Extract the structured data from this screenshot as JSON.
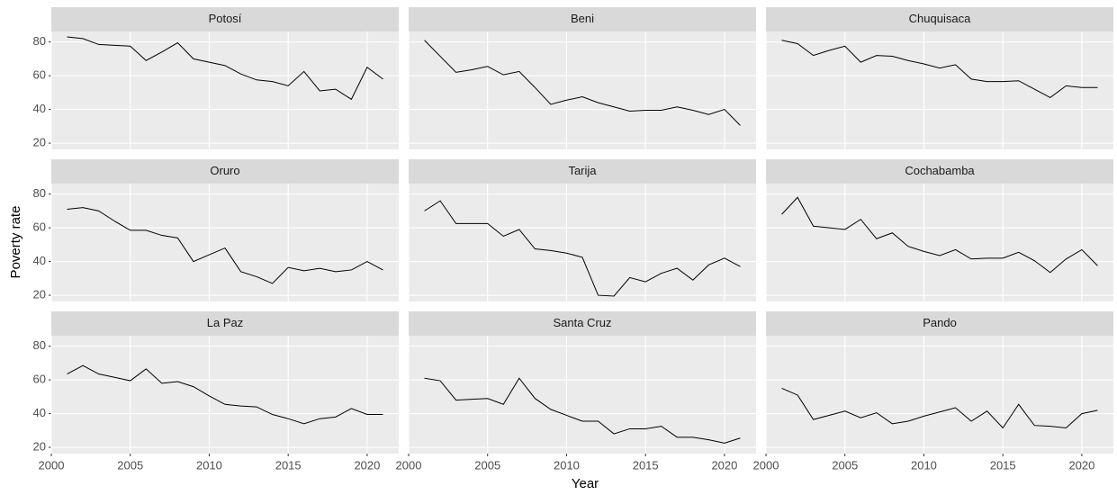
{
  "axis_labels": {
    "x": "Year",
    "y": "Poverty rate"
  },
  "chart_data": [
    {
      "type": "line",
      "title": "Potosí",
      "color": "#000000",
      "grid": true,
      "xlim": [
        2000,
        2022
      ],
      "ylim": [
        16.3,
        86.2
      ],
      "xticks": [
        2000,
        2005,
        2010,
        2015,
        2020
      ],
      "yticks": [
        20,
        40,
        60,
        80
      ],
      "x": [
        2001,
        2002,
        2003,
        2004,
        2005,
        2006,
        2007,
        2008,
        2009,
        2010,
        2011,
        2012,
        2013,
        2014,
        2015,
        2016,
        2017,
        2018,
        2019,
        2020,
        2021
      ],
      "values": [
        83,
        82,
        78.5,
        78,
        77.5,
        69,
        74,
        79.5,
        70,
        68,
        66,
        61,
        57.5,
        56.5,
        54,
        62.5,
        51,
        52,
        46,
        65,
        58
      ]
    },
    {
      "type": "line",
      "title": "Beni",
      "color": "#000000",
      "grid": true,
      "xlim": [
        2000,
        2022
      ],
      "ylim": [
        16.3,
        86.2
      ],
      "xticks": [
        2000,
        2005,
        2010,
        2015,
        2020
      ],
      "yticks": [
        20,
        40,
        60,
        80
      ],
      "x": [
        2001,
        2002,
        2003,
        2004,
        2005,
        2006,
        2007,
        2008,
        2009,
        2010,
        2011,
        2012,
        2013,
        2014,
        2015,
        2016,
        2017,
        2018,
        2019,
        2020,
        2021
      ],
      "values": [
        81,
        71.5,
        62,
        63.5,
        65.5,
        60.5,
        62.5,
        53,
        43,
        45.5,
        47.5,
        44,
        41.5,
        39,
        39.5,
        39.5,
        41.5,
        39.5,
        37,
        40,
        30.5
      ]
    },
    {
      "type": "line",
      "title": "Chuquisaca",
      "color": "#000000",
      "grid": true,
      "xlim": [
        2000,
        2022
      ],
      "ylim": [
        16.3,
        86.2
      ],
      "xticks": [
        2000,
        2005,
        2010,
        2015,
        2020
      ],
      "yticks": [
        20,
        40,
        60,
        80
      ],
      "x": [
        2001,
        2002,
        2003,
        2004,
        2005,
        2006,
        2007,
        2008,
        2009,
        2010,
        2011,
        2012,
        2013,
        2014,
        2015,
        2016,
        2017,
        2018,
        2019,
        2020,
        2021
      ],
      "values": [
        81,
        79,
        72,
        75,
        77.5,
        68,
        72,
        71.5,
        69,
        67,
        64.5,
        66.5,
        58,
        56.5,
        56.5,
        57,
        52,
        47,
        54,
        53,
        53
      ]
    },
    {
      "type": "line",
      "title": "Oruro",
      "color": "#000000",
      "grid": true,
      "xlim": [
        2000,
        2022
      ],
      "ylim": [
        16.3,
        86.2
      ],
      "xticks": [
        2000,
        2005,
        2010,
        2015,
        2020
      ],
      "yticks": [
        20,
        40,
        60,
        80
      ],
      "x": [
        2001,
        2002,
        2003,
        2004,
        2005,
        2006,
        2007,
        2008,
        2009,
        2010,
        2011,
        2012,
        2013,
        2014,
        2015,
        2016,
        2017,
        2018,
        2019,
        2020,
        2021
      ],
      "values": [
        71,
        72,
        70,
        64,
        58.5,
        58.5,
        55.5,
        54,
        40,
        44,
        48,
        34,
        31,
        27,
        36.5,
        34.5,
        36,
        34,
        35,
        40,
        35
      ]
    },
    {
      "type": "line",
      "title": "Tarija",
      "color": "#000000",
      "grid": true,
      "xlim": [
        2000,
        2022
      ],
      "ylim": [
        16.3,
        86.2
      ],
      "xticks": [
        2000,
        2005,
        2010,
        2015,
        2020
      ],
      "yticks": [
        20,
        40,
        60,
        80
      ],
      "x": [
        2001,
        2002,
        2003,
        2004,
        2005,
        2006,
        2007,
        2008,
        2009,
        2010,
        2011,
        2012,
        2013,
        2014,
        2015,
        2016,
        2017,
        2018,
        2019,
        2020,
        2021
      ],
      "values": [
        70,
        76,
        62.5,
        62.5,
        62.5,
        55,
        59,
        47.5,
        46.5,
        45,
        42.5,
        20,
        19.5,
        30.5,
        28,
        33,
        36,
        29,
        38,
        42,
        37
      ]
    },
    {
      "type": "line",
      "title": "Cochabamba",
      "color": "#000000",
      "grid": true,
      "xlim": [
        2000,
        2022
      ],
      "ylim": [
        16.3,
        86.2
      ],
      "xticks": [
        2000,
        2005,
        2010,
        2015,
        2020
      ],
      "yticks": [
        20,
        40,
        60,
        80
      ],
      "x": [
        2001,
        2002,
        2003,
        2004,
        2005,
        2006,
        2007,
        2008,
        2009,
        2010,
        2011,
        2012,
        2013,
        2014,
        2015,
        2016,
        2017,
        2018,
        2019,
        2020,
        2021
      ],
      "values": [
        68,
        78,
        61,
        60,
        59,
        65,
        53.5,
        57,
        49,
        46,
        43.5,
        47,
        41.5,
        42,
        42,
        45.5,
        40.5,
        33.5,
        41.5,
        47,
        37.5
      ]
    },
    {
      "type": "line",
      "title": "La Paz",
      "color": "#000000",
      "grid": true,
      "xlim": [
        2000,
        2022
      ],
      "ylim": [
        16.3,
        86.2
      ],
      "xticks": [
        2000,
        2005,
        2010,
        2015,
        2020
      ],
      "yticks": [
        20,
        40,
        60,
        80
      ],
      "x": [
        2001,
        2002,
        2003,
        2004,
        2005,
        2006,
        2007,
        2008,
        2009,
        2010,
        2011,
        2012,
        2013,
        2014,
        2015,
        2016,
        2017,
        2018,
        2019,
        2020,
        2021
      ],
      "values": [
        63.5,
        68.5,
        63.5,
        61.5,
        59.5,
        66.5,
        58,
        59,
        56,
        50.5,
        45.5,
        44.5,
        44,
        39.5,
        37,
        34,
        37,
        38,
        43,
        39.5,
        39.5
      ]
    },
    {
      "type": "line",
      "title": "Santa Cruz",
      "color": "#000000",
      "grid": true,
      "xlim": [
        2000,
        2022
      ],
      "ylim": [
        16.3,
        86.2
      ],
      "xticks": [
        2000,
        2005,
        2010,
        2015,
        2020
      ],
      "yticks": [
        20,
        40,
        60,
        80
      ],
      "x": [
        2001,
        2002,
        2003,
        2004,
        2005,
        2006,
        2007,
        2008,
        2009,
        2010,
        2011,
        2012,
        2013,
        2014,
        2015,
        2016,
        2017,
        2018,
        2019,
        2020,
        2021
      ],
      "values": [
        61,
        59.5,
        48,
        48.5,
        49,
        45.5,
        61,
        49,
        42.5,
        39,
        35.5,
        35.5,
        28,
        31,
        31,
        32.5,
        26,
        26,
        24.5,
        22.5,
        25.5
      ]
    },
    {
      "type": "line",
      "title": "Pando",
      "color": "#000000",
      "grid": true,
      "xlim": [
        2000,
        2022
      ],
      "ylim": [
        16.3,
        86.2
      ],
      "xticks": [
        2000,
        2005,
        2010,
        2015,
        2020
      ],
      "yticks": [
        20,
        40,
        60,
        80
      ],
      "x": [
        2001,
        2002,
        2003,
        2004,
        2005,
        2006,
        2007,
        2008,
        2009,
        2010,
        2011,
        2012,
        2013,
        2014,
        2015,
        2016,
        2017,
        2018,
        2019,
        2020,
        2021
      ],
      "values": [
        55,
        51,
        36.5,
        39,
        41.5,
        37.5,
        40.5,
        34,
        35.5,
        38.5,
        41,
        43.5,
        35.5,
        41.5,
        31.5,
        45.5,
        33,
        32.5,
        31.5,
        40,
        42
      ]
    }
  ]
}
